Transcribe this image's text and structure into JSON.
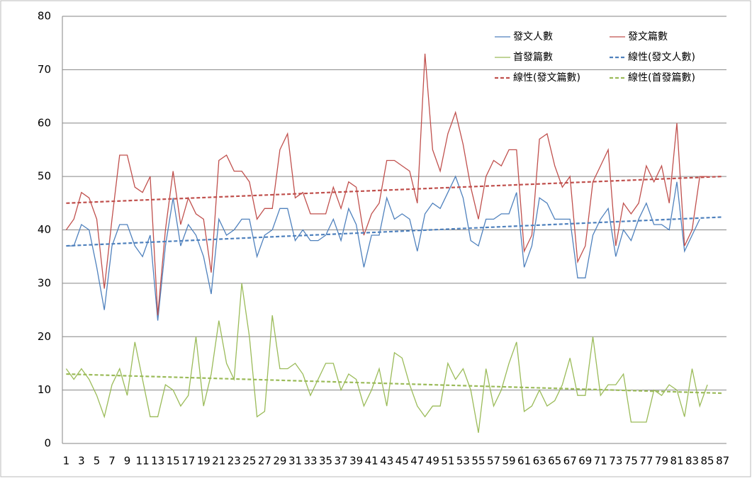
{
  "chart_data": {
    "type": "line",
    "categories": [
      1,
      null,
      3,
      null,
      5,
      null,
      7,
      null,
      9,
      null,
      11,
      null,
      13,
      null,
      15,
      null,
      17,
      null,
      19,
      null,
      21,
      null,
      23,
      null,
      25,
      null,
      27,
      null,
      29,
      null,
      31,
      null,
      33,
      null,
      35,
      null,
      37,
      null,
      39,
      null,
      41,
      null,
      43,
      null,
      45,
      null,
      47,
      null,
      49,
      null,
      51,
      null,
      53,
      null,
      55,
      null,
      57,
      null,
      59,
      null,
      61,
      null,
      63,
      null,
      65,
      null,
      67,
      null,
      69,
      null,
      71,
      null,
      73,
      null,
      75,
      null,
      77,
      null,
      79,
      null,
      81,
      null,
      83,
      null,
      85,
      null,
      87
    ],
    "series": [
      {
        "name": "發文人數",
        "color": "#4f81bd",
        "values": [
          37,
          37,
          41,
          40,
          33,
          25,
          37,
          41,
          41,
          37,
          35,
          39,
          23,
          37,
          46,
          37,
          41,
          39,
          35,
          28,
          42,
          39,
          40,
          42,
          42,
          35,
          39,
          40,
          44,
          44,
          38,
          40,
          38,
          38,
          39,
          42,
          38,
          44,
          41,
          33,
          39,
          39,
          46,
          42,
          43,
          42,
          36,
          43,
          45,
          44,
          47,
          50,
          46,
          38,
          37,
          42,
          42,
          43,
          43,
          47,
          33,
          37,
          46,
          45,
          42,
          42,
          42,
          31,
          31,
          39,
          42,
          44,
          35,
          40,
          38,
          42,
          45,
          41,
          41,
          40,
          49,
          36,
          39,
          42,
          null,
          null,
          null
        ]
      },
      {
        "name": "發文篇數",
        "color": "#c0504d",
        "values": [
          40,
          42,
          47,
          46,
          42,
          29,
          42,
          54,
          54,
          48,
          47,
          50,
          24,
          40,
          51,
          41,
          46,
          43,
          42,
          32,
          53,
          54,
          51,
          51,
          49,
          42,
          44,
          44,
          55,
          58,
          46,
          47,
          43,
          43,
          43,
          48,
          44,
          49,
          48,
          39,
          43,
          45,
          53,
          53,
          52,
          51,
          45,
          73,
          55,
          51,
          58,
          62,
          56,
          48,
          42,
          50,
          53,
          52,
          55,
          55,
          36,
          39,
          57,
          58,
          52,
          48,
          50,
          34,
          37,
          49,
          52,
          55,
          37,
          45,
          43,
          45,
          52,
          49,
          52,
          45,
          60,
          37,
          40,
          50,
          50,
          null,
          null
        ]
      },
      {
        "name": "首發篇數",
        "color": "#9bbb59",
        "values": [
          14,
          12,
          14,
          12,
          9,
          5,
          11,
          14,
          9,
          19,
          12,
          5,
          5,
          11,
          10,
          7,
          9,
          20,
          7,
          13,
          23,
          15,
          12,
          30,
          20,
          5,
          6,
          24,
          14,
          14,
          15,
          13,
          9,
          12,
          15,
          15,
          10,
          13,
          12,
          7,
          10,
          14,
          7,
          17,
          16,
          11,
          7,
          5,
          7,
          7,
          15,
          12,
          14,
          10,
          2,
          14,
          7,
          10,
          15,
          19,
          6,
          7,
          10,
          7,
          8,
          11,
          16,
          9,
          9,
          20,
          9,
          11,
          11,
          13,
          4,
          4,
          4,
          10,
          9,
          11,
          10,
          5,
          14,
          7,
          11,
          null,
          null
        ]
      }
    ],
    "trendlines": [
      {
        "name": "線性(發文人數)",
        "color": "#4f81bd",
        "x": [
          1,
          87
        ],
        "values": [
          37,
          42.4
        ]
      },
      {
        "name": "線性(發文篇數)",
        "color": "#c0504d",
        "x": [
          1,
          87
        ],
        "values": [
          45,
          50
        ]
      },
      {
        "name": "線性(首發篇數)",
        "color": "#9bbb59",
        "x": [
          1,
          87
        ],
        "values": [
          13,
          9.4
        ]
      }
    ],
    "ylim": [
      0,
      80
    ],
    "yticks": [
      0,
      10,
      20,
      30,
      40,
      50,
      60,
      70,
      80
    ],
    "grid": true
  }
}
